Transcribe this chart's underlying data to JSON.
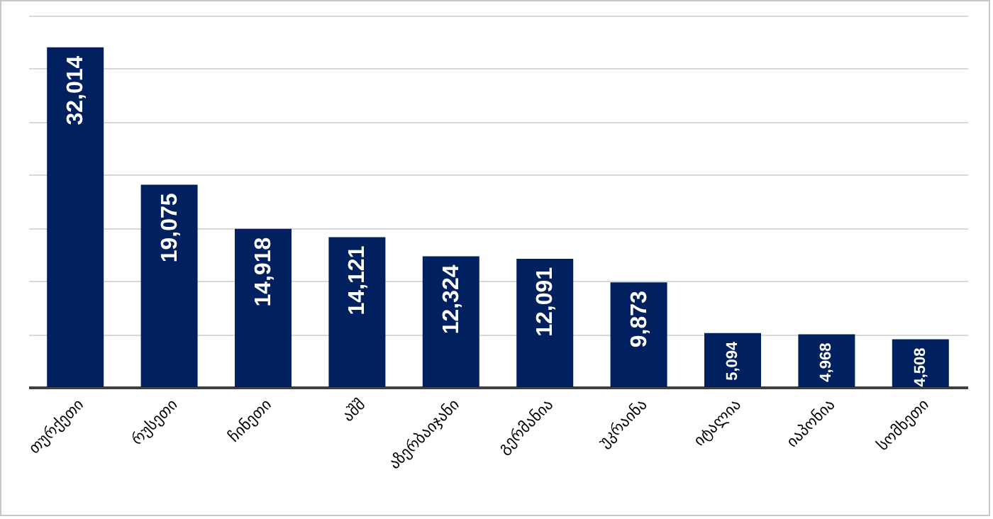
{
  "chart_data": {
    "type": "bar",
    "categories": [
      "თურქეთი",
      "რუსეთი",
      "ჩინეთი",
      "აშშ",
      "აზერბაიჯანი",
      "გერმანია",
      "უკრაინა",
      "იტალია",
      "იაპონია",
      "სომხეთი"
    ],
    "values": [
      32014,
      19075,
      14918,
      14121,
      12324,
      12091,
      9873,
      5094,
      4968,
      4508
    ],
    "value_labels": [
      "32,014",
      "19,075",
      "14,918",
      "14,121",
      "12,324",
      "12,091",
      "9,873",
      "5,094",
      "4,968",
      "4,508"
    ],
    "color": "#002060",
    "grid": "y",
    "tick_labels": "x"
  }
}
